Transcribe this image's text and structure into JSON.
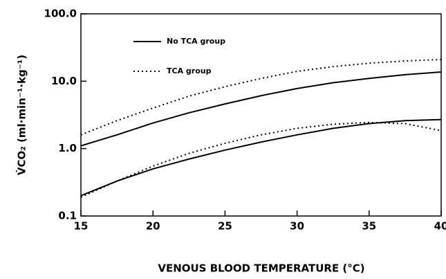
{
  "chart_data": {
    "type": "line",
    "xlabel": "VENOUS BLOOD TEMPERATURE (°C)",
    "ylabel": "V̇CO₂  (ml·min⁻¹·kg⁻¹)",
    "x": [
      15,
      17.5,
      20,
      22.5,
      25,
      27.5,
      30,
      32.5,
      35,
      37.5,
      40
    ],
    "series": [
      {
        "name": "No TCA group",
        "color": "#000000",
        "style": "solid",
        "curves": [
          [
            1.1,
            1.6,
            2.4,
            3.4,
            4.6,
            6.1,
            7.8,
            9.5,
            11,
            12.5,
            13.7
          ],
          [
            0.2,
            0.33,
            0.5,
            0.7,
            0.95,
            1.25,
            1.6,
            2.0,
            2.35,
            2.6,
            2.7
          ]
        ]
      },
      {
        "name": "TCA group",
        "color": "#000000",
        "style": "dotted",
        "curves": [
          [
            1.6,
            2.6,
            4.0,
            6.0,
            8.3,
            11,
            14,
            16.5,
            18.5,
            20,
            21
          ],
          [
            0.19,
            0.33,
            0.55,
            0.85,
            1.2,
            1.6,
            2.0,
            2.3,
            2.45,
            2.35,
            1.85
          ]
        ]
      }
    ],
    "xlim": [
      15,
      40
    ],
    "xticks": [
      15,
      20,
      25,
      30,
      35,
      40
    ],
    "ylim": [
      0.1,
      100
    ],
    "yticks": [
      0.1,
      {
        "value": 1,
        "label": "1.0"
      },
      {
        "value": 10,
        "label": "10.0"
      },
      {
        "value": 100,
        "label": "100.0"
      }
    ],
    "log_y": true,
    "grid": false,
    "legend": "upper left"
  }
}
